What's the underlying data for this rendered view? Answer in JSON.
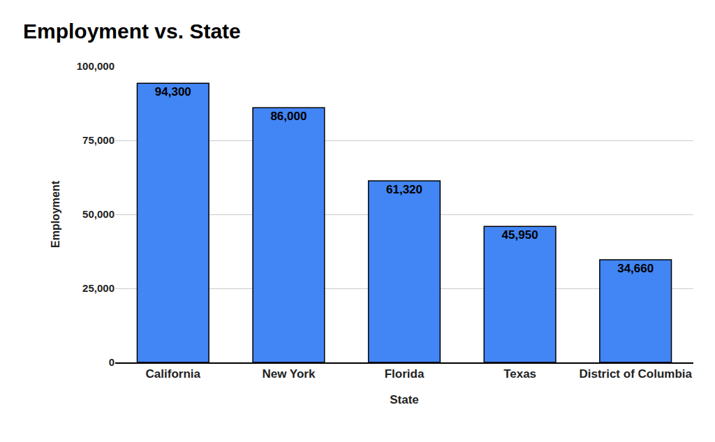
{
  "chart_data": {
    "type": "bar",
    "title": "Employment vs. State",
    "x_label": "State",
    "y_label": "Employment",
    "categories": [
      "California",
      "New York",
      "Florida",
      "Texas",
      "District of Columbia"
    ],
    "values": [
      94300,
      86000,
      61320,
      45950,
      34660
    ],
    "value_labels": [
      "94,300",
      "86,000",
      "61,320",
      "45,950",
      "34,660"
    ],
    "data_labels": true,
    "color": "#4285f4",
    "ylim": [
      0,
      100000
    ],
    "yticks": [
      0,
      {
        "value": 25000,
        "label": "25,000"
      },
      {
        "value": 50000,
        "label": "50,000"
      },
      {
        "value": 75000,
        "label": "75,000"
      },
      {
        "value": 100000,
        "label": "100,000"
      }
    ],
    "grid": true
  }
}
